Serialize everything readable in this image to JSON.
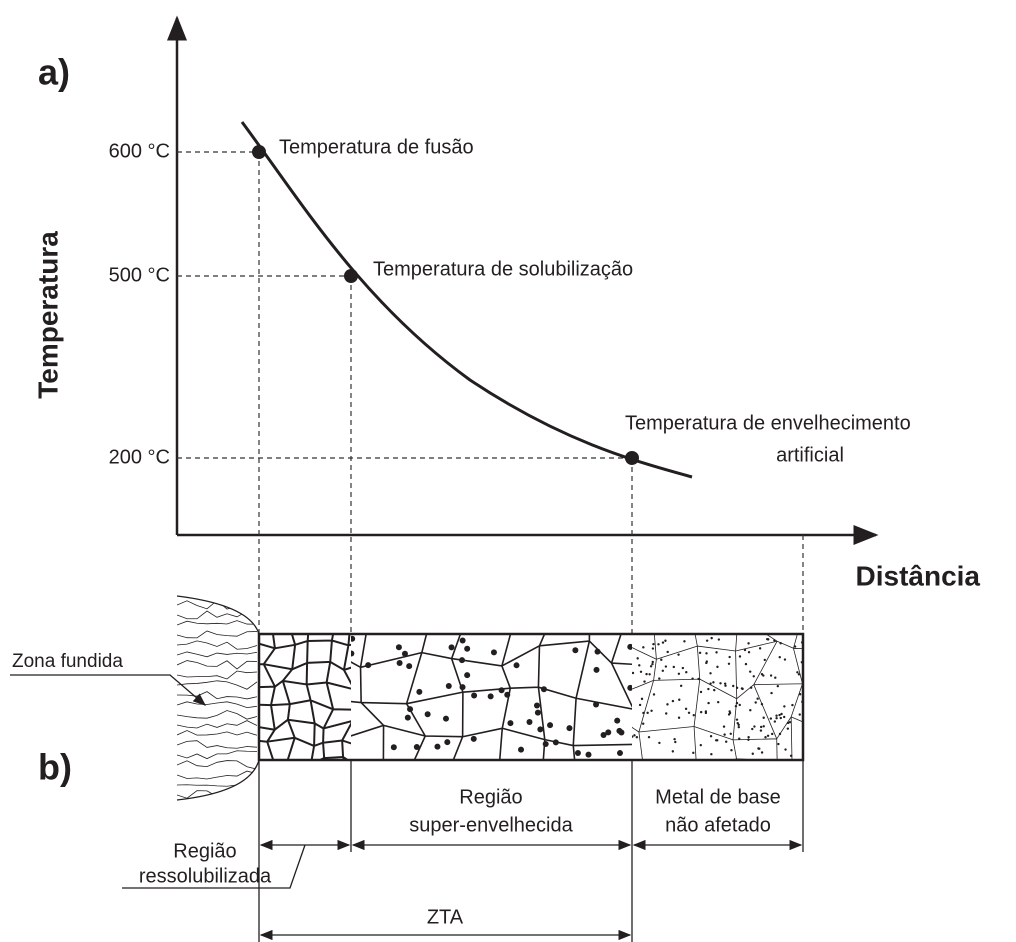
{
  "panel_a": {
    "label": "a)",
    "y_axis_title": "Temperatura",
    "x_axis_title": "Distância",
    "temperatures": [
      "600 °C",
      "500 °C",
      "200 °C"
    ],
    "points": [
      [
        "Temperatura de fusão"
      ],
      [
        "Temperatura de solubilização"
      ],
      [
        "Temperatura de envelhecimento",
        "artificial"
      ]
    ]
  },
  "panel_b": {
    "label": "b)",
    "zone": "Zona fundida",
    "regions": [
      [
        "Região",
        "ressolubilizada"
      ],
      [
        "Região",
        "super-envelhecida"
      ],
      [
        "Metal de base",
        "não afetado"
      ]
    ],
    "zta": "ZTA"
  }
}
